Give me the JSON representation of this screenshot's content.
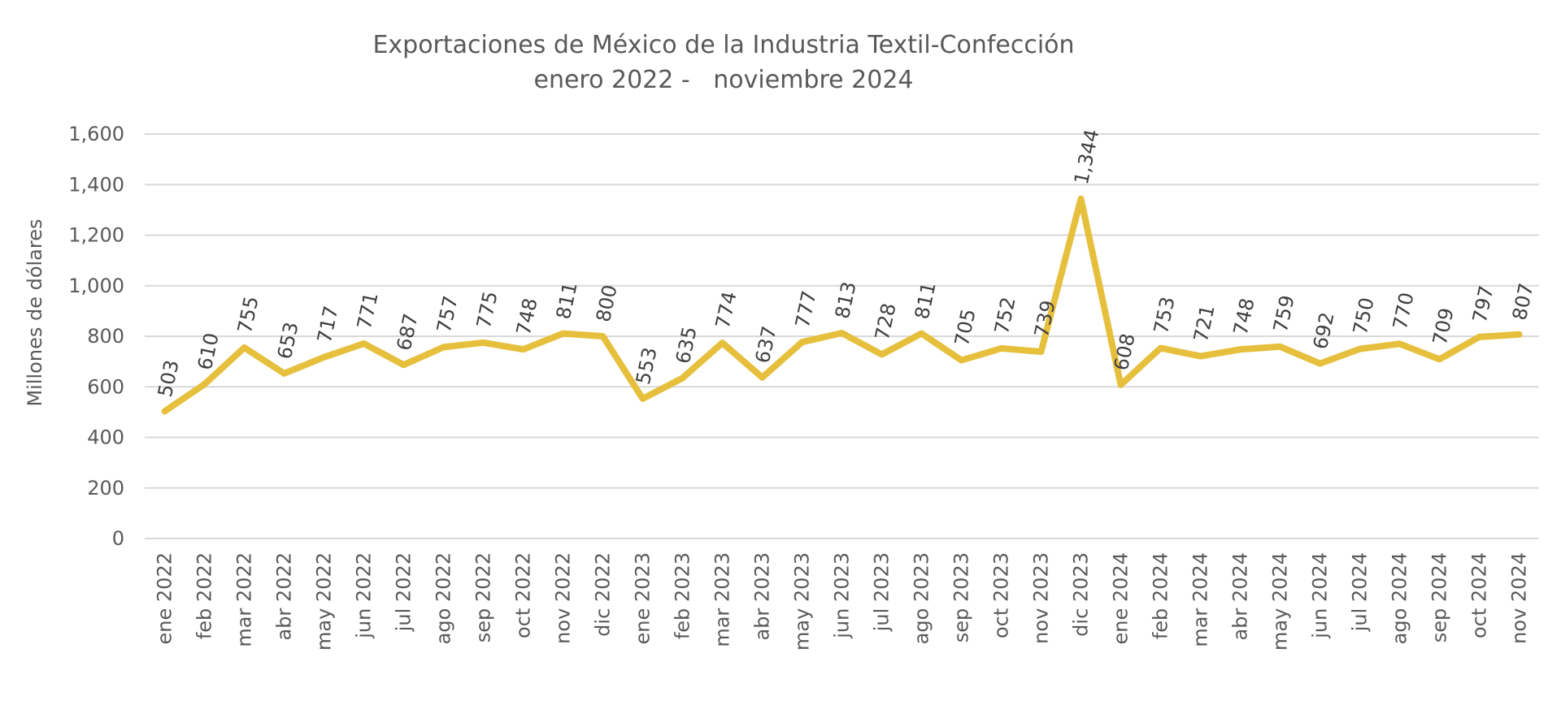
{
  "title": {
    "line1": "Exportaciones de México de la Industria Textil-Confección",
    "line2": "enero 2022 -   noviembre 2024"
  },
  "colors": {
    "line": "#E6BF3C",
    "grid": "#D9D9D9",
    "axis_text": "#595959",
    "data_label_text": "#404040",
    "title_text": "#595959",
    "background": "#FFFFFF"
  },
  "chart_data": {
    "type": "line",
    "title": "Exportaciones de México de la Industria Textil-Confección",
    "subtitle": "enero 2022 -   noviembre 2024",
    "xlabel": "",
    "ylabel": "Millones de dólares",
    "ylim": [
      0,
      1600
    ],
    "ytick_step": 200,
    "ytick_labels": [
      "0",
      "200",
      "400",
      "600",
      "800",
      "1,000",
      "1,200",
      "1,400",
      "1,600"
    ],
    "grid": true,
    "legend": false,
    "data_labels": true,
    "categories": [
      "ene 2022",
      "feb 2022",
      "mar 2022",
      "abr 2022",
      "may 2022",
      "jun 2022",
      "jul 2022",
      "ago 2022",
      "sep 2022",
      "oct 2022",
      "nov 2022",
      "dic 2022",
      "ene 2023",
      "feb 2023",
      "mar 2023",
      "abr 2023",
      "may 2023",
      "jun 2023",
      "jul 2023",
      "ago 2023",
      "sep 2023",
      "oct 2023",
      "nov 2023",
      "dic 2023",
      "ene 2024",
      "feb 2024",
      "mar 2024",
      "abr 2024",
      "may 2024",
      "jun 2024",
      "jul 2024",
      "ago 2024",
      "sep 2024",
      "oct 2024",
      "nov 2024"
    ],
    "values": [
      503,
      610,
      755,
      653,
      717,
      771,
      687,
      757,
      775,
      748,
      811,
      800,
      553,
      635,
      774,
      637,
      777,
      813,
      728,
      811,
      705,
      752,
      739,
      1344,
      608,
      753,
      721,
      748,
      759,
      692,
      750,
      770,
      709,
      797,
      807
    ],
    "value_labels": [
      "503",
      "610",
      "755",
      "653",
      "717",
      "771",
      "687",
      "757",
      "775",
      "748",
      "811",
      "800",
      "553",
      "635",
      "774",
      "637",
      "777",
      "813",
      "728",
      "811",
      "705",
      "752",
      "739",
      "1,344",
      "608",
      "753",
      "721",
      "748",
      "759",
      "692",
      "750",
      "770",
      "709",
      "797",
      "807"
    ]
  }
}
